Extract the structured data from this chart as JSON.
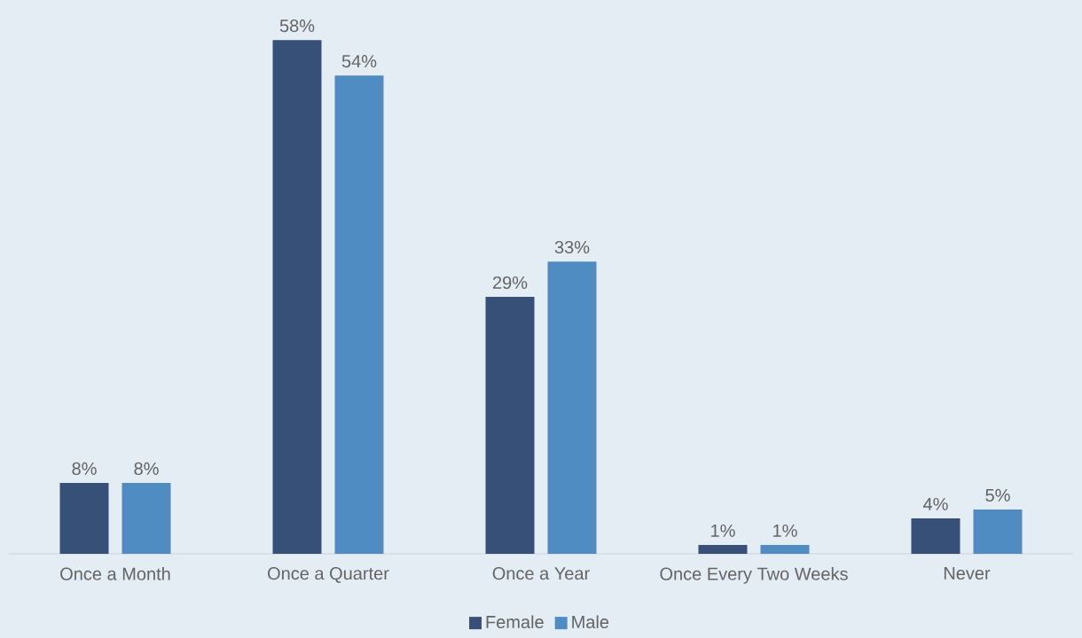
{
  "chart_data": {
    "type": "bar",
    "categories": [
      "Once a Month",
      "Once a Quarter",
      "Once a Year",
      "Once Every Two Weeks",
      "Never"
    ],
    "series": [
      {
        "name": "Female",
        "color": "#375078",
        "values": [
          8,
          58,
          29,
          1,
          4
        ],
        "value_labels": [
          "8%",
          "58%",
          "29%",
          "1%",
          "4%"
        ]
      },
      {
        "name": "Male",
        "color": "#4f8cc2",
        "values": [
          8,
          54,
          33,
          1,
          5
        ],
        "value_labels": [
          "8%",
          "54%",
          "33%",
          "1%",
          "5%"
        ]
      }
    ],
    "legend": "bottom"
  }
}
